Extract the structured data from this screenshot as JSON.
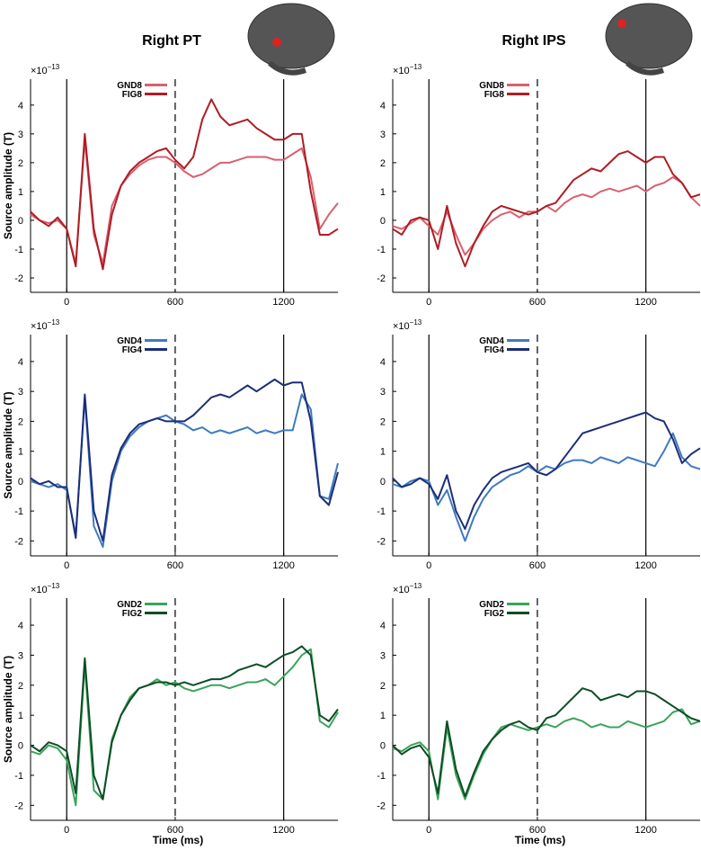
{
  "chart_data": [
    {
      "type": "line",
      "title": "Right PT",
      "y_label": "Source amplitude (T)",
      "y_scale": {
        "base": "×10",
        "exponent": "−13"
      },
      "x": [
        -200,
        -150,
        -100,
        -50,
        0,
        50,
        100,
        150,
        200,
        250,
        300,
        350,
        400,
        450,
        500,
        550,
        600,
        650,
        700,
        750,
        800,
        850,
        900,
        950,
        1000,
        1050,
        1100,
        1150,
        1200,
        1250,
        1300,
        1350,
        1400,
        1450,
        1500
      ],
      "series": [
        {
          "name": "GND8",
          "color": "#d9606e",
          "values": [
            0.2,
            0,
            -0.1,
            0,
            -0.3,
            -1.5,
            2.8,
            -0.5,
            -1.5,
            0.5,
            1.2,
            1.6,
            1.9,
            2.1,
            2.2,
            2.2,
            2.0,
            1.7,
            1.5,
            1.6,
            1.8,
            2.0,
            2.0,
            2.1,
            2.2,
            2.2,
            2.2,
            2.1,
            2.1,
            2.3,
            2.5,
            1.5,
            -0.3,
            0.2,
            0.6
          ]
        },
        {
          "name": "FIG8",
          "color": "#b01c24",
          "values": [
            0.3,
            0.0,
            -0.2,
            0.1,
            -0.3,
            -1.6,
            3.0,
            -0.3,
            -1.7,
            0.2,
            1.2,
            1.7,
            2.0,
            2.2,
            2.4,
            2.5,
            2.1,
            1.8,
            2.2,
            3.5,
            4.2,
            3.6,
            3.3,
            3.4,
            3.5,
            3.2,
            3.0,
            2.8,
            2.8,
            3.0,
            3.0,
            1.0,
            -0.5,
            -0.5,
            -0.3
          ]
        }
      ],
      "xlim": [
        -200,
        1500
      ],
      "ylim": [
        -2.5,
        4.9
      ],
      "xticks": [
        0,
        600,
        1200
      ],
      "yticks": [
        -2,
        -1,
        0,
        1,
        2,
        3,
        4
      ],
      "vlines": [
        {
          "x": 0,
          "style": "solid"
        },
        {
          "x": 600,
          "style": "dashed"
        },
        {
          "x": 1200,
          "style": "solid"
        }
      ],
      "legend": "top-left"
    },
    {
      "type": "line",
      "title": "Right IPS",
      "y_scale": {
        "base": "×10",
        "exponent": "−13"
      },
      "x": [
        -200,
        -150,
        -100,
        -50,
        0,
        50,
        100,
        150,
        200,
        250,
        300,
        350,
        400,
        450,
        500,
        550,
        600,
        650,
        700,
        750,
        800,
        850,
        900,
        950,
        1000,
        1050,
        1100,
        1150,
        1200,
        1250,
        1300,
        1350,
        1400,
        1450,
        1500
      ],
      "series": [
        {
          "name": "GND8",
          "color": "#d9606e",
          "values": [
            -0.2,
            -0.3,
            -0.1,
            0.1,
            -0.2,
            -0.5,
            0.3,
            -0.5,
            -1.2,
            -0.8,
            -0.3,
            0,
            0.2,
            0.3,
            0.1,
            0.3,
            0.3,
            0.5,
            0.3,
            0.6,
            0.8,
            0.9,
            0.8,
            1.0,
            1.1,
            1.0,
            1.1,
            1.2,
            1.0,
            1.2,
            1.3,
            1.5,
            1.3,
            0.8,
            0.5
          ]
        },
        {
          "name": "FIG8",
          "color": "#b01c24",
          "values": [
            -0.3,
            -0.5,
            0,
            0.1,
            0.0,
            -1.0,
            0.5,
            -0.8,
            -1.6,
            -0.8,
            -0.2,
            0.3,
            0.5,
            0.4,
            0.3,
            0.2,
            0.3,
            0.5,
            0.6,
            1.0,
            1.4,
            1.6,
            1.8,
            1.7,
            2.0,
            2.3,
            2.4,
            2.2,
            2.0,
            2.2,
            2.2,
            1.6,
            1.3,
            0.8,
            0.9
          ]
        }
      ],
      "xlim": [
        -200,
        1500
      ],
      "ylim": [
        -2.5,
        4.9
      ],
      "xticks": [
        0,
        600,
        1200
      ],
      "yticks": [
        -2,
        -1,
        0,
        1,
        2,
        3,
        4
      ],
      "vlines": [
        {
          "x": 0,
          "style": "solid"
        },
        {
          "x": 600,
          "style": "dashed"
        },
        {
          "x": 1200,
          "style": "solid"
        }
      ],
      "legend": "top-left"
    },
    {
      "type": "line",
      "y_label": "Source amplitude (T)",
      "y_scale": {
        "base": "×10",
        "exponent": "−13"
      },
      "x": [
        -200,
        -150,
        -100,
        -50,
        0,
        50,
        100,
        150,
        200,
        250,
        300,
        350,
        400,
        450,
        500,
        550,
        600,
        650,
        700,
        750,
        800,
        850,
        900,
        950,
        1000,
        1050,
        1100,
        1150,
        1200,
        1250,
        1300,
        1350,
        1400,
        1450,
        1500
      ],
      "series": [
        {
          "name": "GND4",
          "color": "#3f7bbf",
          "values": [
            0,
            -0.1,
            -0.2,
            -0.1,
            -0.3,
            -1.8,
            2.8,
            -1.5,
            -2.2,
            0,
            1.0,
            1.5,
            1.8,
            2.0,
            2.1,
            2.2,
            2.0,
            1.9,
            1.7,
            1.8,
            1.6,
            1.7,
            1.6,
            1.7,
            1.8,
            1.6,
            1.7,
            1.6,
            1.7,
            1.7,
            2.9,
            2.4,
            -0.5,
            -0.6,
            0.6
          ]
        },
        {
          "name": "FIG4",
          "color": "#1c2e78",
          "values": [
            0.1,
            -0.1,
            0.0,
            -0.2,
            -0.2,
            -1.9,
            2.9,
            -1.0,
            -2.0,
            0.2,
            1.1,
            1.6,
            1.9,
            2.0,
            2.1,
            2.0,
            2.0,
            2.0,
            2.2,
            2.5,
            2.8,
            2.9,
            2.8,
            3.0,
            3.2,
            3.0,
            3.2,
            3.4,
            3.2,
            3.3,
            3.3,
            2.0,
            -0.5,
            -0.8,
            0.3
          ]
        }
      ],
      "xlim": [
        -200,
        1500
      ],
      "ylim": [
        -2.5,
        4.9
      ],
      "xticks": [
        0,
        600,
        1200
      ],
      "yticks": [
        -2,
        -1,
        0,
        1,
        2,
        3,
        4
      ],
      "vlines": [
        {
          "x": 0,
          "style": "solid"
        },
        {
          "x": 600,
          "style": "dashed"
        },
        {
          "x": 1200,
          "style": "solid"
        }
      ],
      "legend": "top-left"
    },
    {
      "type": "line",
      "y_scale": {
        "base": "×10",
        "exponent": "−13"
      },
      "x": [
        -200,
        -150,
        -100,
        -50,
        0,
        50,
        100,
        150,
        200,
        250,
        300,
        350,
        400,
        450,
        500,
        550,
        600,
        650,
        700,
        750,
        800,
        850,
        900,
        950,
        1000,
        1050,
        1100,
        1150,
        1200,
        1250,
        1300,
        1350,
        1400,
        1450,
        1500
      ],
      "series": [
        {
          "name": "GND4",
          "color": "#3f7bbf",
          "values": [
            -0.1,
            -0.2,
            0,
            0.1,
            0,
            -0.8,
            -0.3,
            -1.2,
            -2.0,
            -1.2,
            -0.6,
            -0.2,
            0,
            0.2,
            0.3,
            0.5,
            0.3,
            0.5,
            0.4,
            0.6,
            0.7,
            0.7,
            0.6,
            0.8,
            0.7,
            0.6,
            0.8,
            0.7,
            0.6,
            0.5,
            1.0,
            1.6,
            0.8,
            0.5,
            0.4
          ]
        },
        {
          "name": "FIG4",
          "color": "#1c2e78",
          "values": [
            0.1,
            -0.2,
            -0.1,
            0.1,
            -0.1,
            -0.6,
            0.2,
            -1.0,
            -1.6,
            -0.8,
            -0.3,
            0.1,
            0.3,
            0.4,
            0.5,
            0.6,
            0.3,
            0.2,
            0.4,
            0.8,
            1.2,
            1.6,
            1.7,
            1.8,
            1.9,
            2.0,
            2.1,
            2.2,
            2.3,
            2.1,
            2.0,
            1.4,
            0.6,
            0.9,
            1.1
          ]
        }
      ],
      "xlim": [
        -200,
        1500
      ],
      "ylim": [
        -2.5,
        4.9
      ],
      "xticks": [
        0,
        600,
        1200
      ],
      "yticks": [
        -2,
        -1,
        0,
        1,
        2,
        3,
        4
      ],
      "vlines": [
        {
          "x": 0,
          "style": "solid"
        },
        {
          "x": 600,
          "style": "dashed"
        },
        {
          "x": 1200,
          "style": "solid"
        }
      ],
      "legend": "top-left"
    },
    {
      "type": "line",
      "y_label": "Source amplitude (T)",
      "x_label": "Time (ms)",
      "y_scale": {
        "base": "×10",
        "exponent": "−13"
      },
      "x": [
        -200,
        -150,
        -100,
        -50,
        0,
        50,
        100,
        150,
        200,
        250,
        300,
        350,
        400,
        450,
        500,
        550,
        600,
        650,
        700,
        750,
        800,
        850,
        900,
        950,
        1000,
        1050,
        1100,
        1150,
        1200,
        1250,
        1300,
        1350,
        1400,
        1450,
        1500
      ],
      "series": [
        {
          "name": "GND2",
          "color": "#3aa35a",
          "values": [
            -0.2,
            -0.3,
            0,
            -0.1,
            -0.5,
            -2.0,
            2.7,
            -1.5,
            -1.8,
            0.2,
            1.0,
            1.6,
            1.9,
            2.0,
            2.2,
            2.0,
            2.1,
            1.9,
            1.8,
            1.9,
            2.0,
            2.0,
            1.9,
            2.0,
            2.1,
            2.1,
            2.2,
            2.0,
            2.3,
            2.6,
            3.0,
            3.2,
            0.8,
            0.6,
            1.1
          ]
        },
        {
          "name": "FIG2",
          "color": "#0d4d25",
          "values": [
            0,
            -0.2,
            0.1,
            0,
            -0.2,
            -1.6,
            2.9,
            -1.0,
            -1.8,
            0.1,
            1.0,
            1.5,
            1.9,
            2.0,
            2.1,
            2.1,
            2.0,
            2.1,
            2.0,
            2.1,
            2.2,
            2.2,
            2.3,
            2.5,
            2.6,
            2.7,
            2.6,
            2.8,
            3.0,
            3.1,
            3.3,
            3.0,
            1.0,
            0.8,
            1.2
          ]
        }
      ],
      "xlim": [
        -200,
        1500
      ],
      "ylim": [
        -2.5,
        4.9
      ],
      "xticks": [
        0,
        600,
        1200
      ],
      "yticks": [
        -2,
        -1,
        0,
        1,
        2,
        3,
        4
      ],
      "vlines": [
        {
          "x": 0,
          "style": "solid"
        },
        {
          "x": 600,
          "style": "dashed"
        },
        {
          "x": 1200,
          "style": "solid"
        }
      ],
      "legend": "top-left"
    },
    {
      "type": "line",
      "x_label": "Time (ms)",
      "y_scale": {
        "base": "×10",
        "exponent": "−13"
      },
      "x": [
        -200,
        -150,
        -100,
        -50,
        0,
        50,
        100,
        150,
        200,
        250,
        300,
        350,
        400,
        450,
        500,
        550,
        600,
        650,
        700,
        750,
        800,
        850,
        900,
        950,
        1000,
        1050,
        1100,
        1150,
        1200,
        1250,
        1300,
        1350,
        1400,
        1450,
        1500
      ],
      "series": [
        {
          "name": "GND2",
          "color": "#3aa35a",
          "values": [
            -0.1,
            -0.2,
            0,
            0.1,
            -0.2,
            -1.8,
            0.6,
            -1.0,
            -1.8,
            -1.0,
            -0.3,
            0.2,
            0.6,
            0.7,
            0.6,
            0.5,
            0.6,
            0.7,
            0.6,
            0.8,
            0.9,
            0.8,
            0.6,
            0.7,
            0.6,
            0.6,
            0.8,
            0.7,
            0.6,
            0.7,
            0.8,
            1.1,
            1.2,
            0.7,
            0.8
          ]
        },
        {
          "name": "FIG2",
          "color": "#0d4d25",
          "values": [
            0,
            -0.3,
            -0.1,
            0,
            -0.4,
            -1.6,
            0.8,
            -0.8,
            -1.7,
            -0.9,
            -0.2,
            0.2,
            0.5,
            0.7,
            0.8,
            0.6,
            0.5,
            0.9,
            1.0,
            1.3,
            1.6,
            1.9,
            1.8,
            1.5,
            1.6,
            1.7,
            1.6,
            1.8,
            1.8,
            1.7,
            1.5,
            1.3,
            1.1,
            0.9,
            0.8
          ]
        }
      ],
      "xlim": [
        -200,
        1500
      ],
      "ylim": [
        -2.5,
        4.9
      ],
      "xticks": [
        0,
        600,
        1200
      ],
      "yticks": [
        -2,
        -1,
        0,
        1,
        2,
        3,
        4
      ],
      "vlines": [
        {
          "x": 0,
          "style": "solid"
        },
        {
          "x": 600,
          "style": "dashed"
        },
        {
          "x": 1200,
          "style": "solid"
        }
      ],
      "legend": "top-left"
    }
  ]
}
